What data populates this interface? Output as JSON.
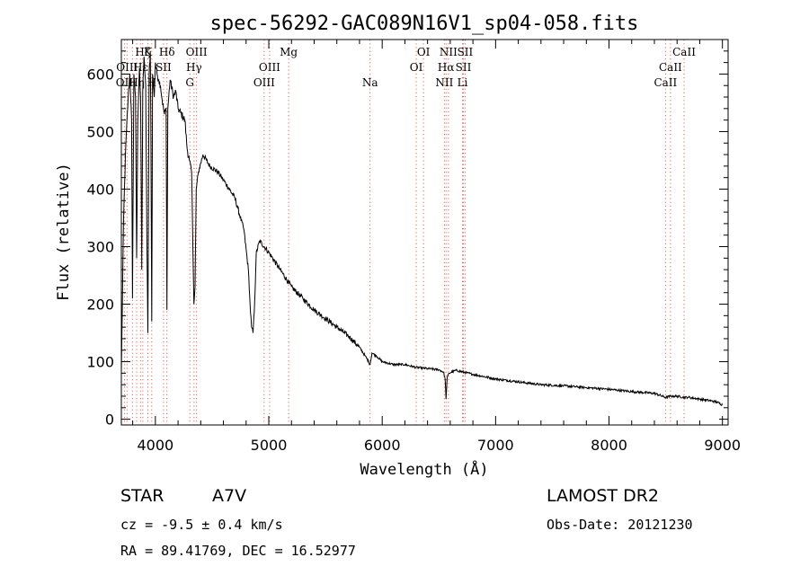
{
  "chart_data": {
    "type": "line",
    "title": "spec-56292-GAC089N16V1_sp04-058.fits",
    "xlabel": "Wavelength (Å)",
    "ylabel": "Flux (relative)",
    "xlim": [
      3700,
      9050
    ],
    "ylim": [
      -10,
      660
    ],
    "xticks": [
      4000,
      5000,
      6000,
      7000,
      8000,
      9000
    ],
    "yticks": [
      0,
      100,
      200,
      300,
      400,
      500,
      600
    ],
    "grid": false,
    "series": [
      {
        "x": [
          3700,
          3720,
          3740,
          3760,
          3775,
          3790,
          3798,
          3810,
          3825,
          3835,
          3845,
          3860,
          3870,
          3880,
          3889,
          3900,
          3915,
          3925,
          3934,
          3945,
          3955,
          3960,
          3968,
          3975,
          3990,
          4000,
          4015,
          4030,
          4045,
          4060,
          4080,
          4095,
          4102,
          4110,
          4130,
          4160,
          4180,
          4200,
          4230,
          4260,
          4280,
          4300,
          4320,
          4340,
          4350,
          4360,
          4380,
          4420,
          4480,
          4550,
          4620,
          4700,
          4780,
          4820,
          4835,
          4848,
          4861,
          4875,
          4890,
          4920,
          5000,
          5100,
          5200,
          5300,
          5400,
          5500,
          5600,
          5700,
          5800,
          5850,
          5880,
          5893,
          5910,
          5950,
          6000,
          6100,
          6200,
          6300,
          6400,
          6500,
          6540,
          6555,
          6563,
          6572,
          6590,
          6650,
          6800,
          7000,
          7200,
          7400,
          7600,
          7800,
          8000,
          8200,
          8400,
          8498,
          8542,
          8600,
          8662,
          8700,
          8800,
          8900,
          8950,
          9000
        ],
        "y": [
          80,
          350,
          480,
          560,
          600,
          520,
          210,
          600,
          560,
          280,
          520,
          610,
          560,
          260,
          570,
          630,
          580,
          310,
          150,
          600,
          640,
          520,
          170,
          600,
          560,
          620,
          600,
          590,
          580,
          555,
          530,
          540,
          190,
          540,
          590,
          560,
          570,
          540,
          530,
          520,
          470,
          450,
          430,
          200,
          230,
          400,
          430,
          460,
          440,
          430,
          410,
          385,
          330,
          260,
          200,
          160,
          150,
          200,
          290,
          310,
          290,
          260,
          230,
          210,
          190,
          175,
          160,
          145,
          125,
          110,
          100,
          95,
          115,
          110,
          100,
          95,
          95,
          90,
          88,
          86,
          82,
          70,
          35,
          72,
          80,
          85,
          78,
          70,
          65,
          60,
          58,
          55,
          52,
          48,
          45,
          38,
          40,
          40,
          38,
          38,
          35,
          32,
          30,
          25
        ]
      }
    ],
    "line_marks": [
      {
        "wl": 3727,
        "labels": [
          "OII"
        ],
        "row": 2
      },
      {
        "wl": 3750,
        "labels": [
          "OIII"
        ],
        "row": 1
      },
      {
        "wl": 3798,
        "labels": [],
        "row": 0
      },
      {
        "wl": 3835,
        "labels": [
          "Hη"
        ],
        "row": 2
      },
      {
        "wl": 3869,
        "labels": [
          "Hε"
        ],
        "row": 1
      },
      {
        "wl": 3889,
        "labels": [
          "Hζ"
        ],
        "row": 0
      },
      {
        "wl": 3934,
        "labels": [
          "K"
        ],
        "row": 0
      },
      {
        "wl": 3968,
        "labels": [
          "H"
        ],
        "row": 2
      },
      {
        "wl": 4072,
        "labels": [
          "SII"
        ],
        "row": 1
      },
      {
        "wl": 4102,
        "labels": [
          "Hδ"
        ],
        "row": 0
      },
      {
        "wl": 4304,
        "labels": [
          "G"
        ],
        "row": 2
      },
      {
        "wl": 4341,
        "labels": [
          "Hγ"
        ],
        "row": 1
      },
      {
        "wl": 4363,
        "labels": [
          "OIII"
        ],
        "row": 0
      },
      {
        "wl": 4959,
        "labels": [
          "OIII"
        ],
        "row": 2
      },
      {
        "wl": 5007,
        "labels": [
          "OIII"
        ],
        "row": 1
      },
      {
        "wl": 5175,
        "labels": [
          "Mg"
        ],
        "row": 0
      },
      {
        "wl": 5893,
        "labels": [
          "Na"
        ],
        "row": 2
      },
      {
        "wl": 6300,
        "labels": [
          "OI"
        ],
        "row": 1
      },
      {
        "wl": 6364,
        "labels": [
          "OI"
        ],
        "row": 0
      },
      {
        "wl": 6548,
        "labels": [
          "NII"
        ],
        "row": 2
      },
      {
        "wl": 6563,
        "labels": [
          "Hα"
        ],
        "row": 1
      },
      {
        "wl": 6584,
        "labels": [
          "NII"
        ],
        "row": 0
      },
      {
        "wl": 6708,
        "labels": [
          "Li"
        ],
        "row": 2
      },
      {
        "wl": 6716,
        "labels": [
          "SII"
        ],
        "row": 1
      },
      {
        "wl": 6731,
        "labels": [
          "SII"
        ],
        "row": 0
      },
      {
        "wl": 8498,
        "labels": [
          "CaII"
        ],
        "row": 2
      },
      {
        "wl": 8542,
        "labels": [
          "CaII"
        ],
        "row": 1
      },
      {
        "wl": 8662,
        "labels": [
          "CaII"
        ],
        "row": 0
      }
    ],
    "colors": {
      "spectrum": "#000000",
      "line_marks": "#e06060",
      "axes": "#000000"
    }
  },
  "info": {
    "object_class": "STAR",
    "subclass": "A7V",
    "survey": "LAMOST DR2",
    "cz": "cz = -9.5 ± 0.4 km/s",
    "obs_date": "Obs-Date: 20121230",
    "coords": "RA =  89.41769, DEC =  16.52977"
  }
}
